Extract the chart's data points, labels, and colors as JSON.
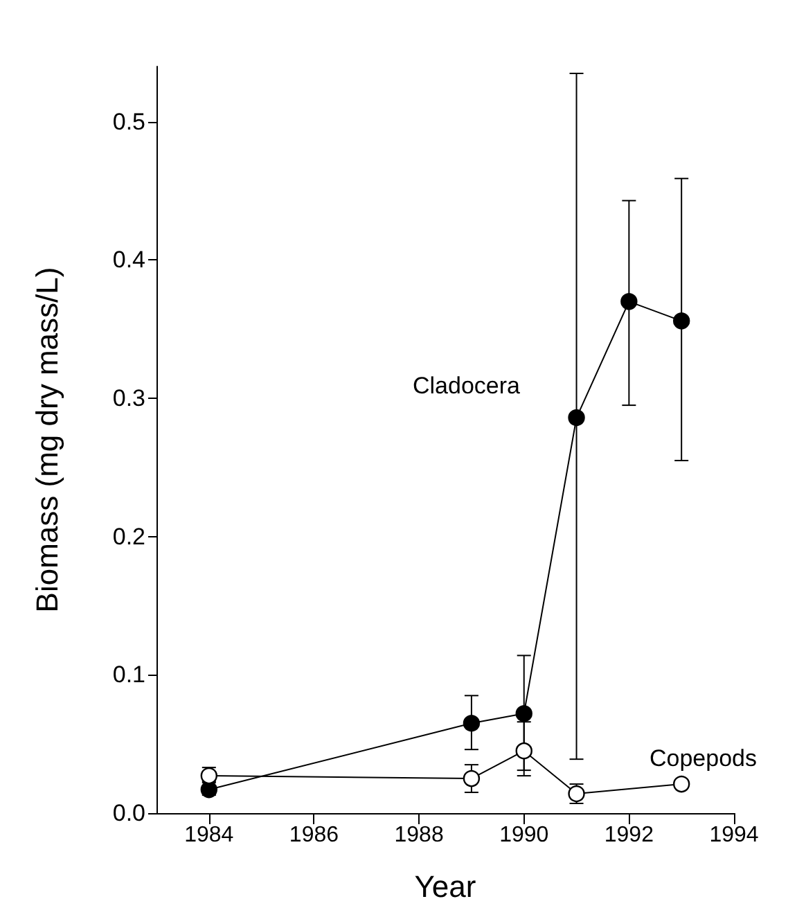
{
  "chart_data": {
    "type": "line",
    "xlabel": "Year",
    "ylabel": "Biomass (mg dry mass/L)",
    "x": [
      1984,
      1989,
      1990,
      1991,
      1992,
      1993
    ],
    "series": [
      {
        "color": "#000000",
        "marker": "circle",
        "values": [
          0.017,
          0.065,
          0.072,
          0.286,
          0.37,
          0.356
        ],
        "errors": [
          [
            0.013,
            0.023
          ],
          [
            0.046,
            0.085
          ],
          [
            0.031,
            0.114
          ],
          [
            0.039,
            0.535
          ],
          [
            0.295,
            0.443
          ],
          [
            0.255,
            0.459
          ]
        ]
      },
      {
        "color": "#000000",
        "marker": "circle",
        "values": [
          0.027,
          0.025,
          0.045,
          0.014,
          null,
          0.021
        ],
        "errors": [
          [
            0.022,
            0.033
          ],
          [
            0.015,
            0.035
          ],
          [
            0.027,
            0.066
          ],
          [
            0.007,
            0.021
          ],
          null,
          null
        ]
      }
    ],
    "annotations": [
      "Cladocera",
      "Copepods"
    ],
    "xlim": [
      1983,
      1994
    ],
    "xticks": [
      1984,
      1986,
      1988,
      1990,
      1992,
      1994
    ],
    "ylim": [
      0,
      0.54
    ],
    "yticks": [
      {
        "value": 0,
        "label": "0.0"
      },
      {
        "value": 0.1,
        "label": "0.1"
      },
      {
        "value": 0.2,
        "label": "0.2"
      },
      {
        "value": 0.3,
        "label": "0.3"
      },
      {
        "value": 0.4,
        "label": "0.4"
      },
      {
        "value": 0.5,
        "label": "0.5"
      }
    ],
    "grid": false
  }
}
